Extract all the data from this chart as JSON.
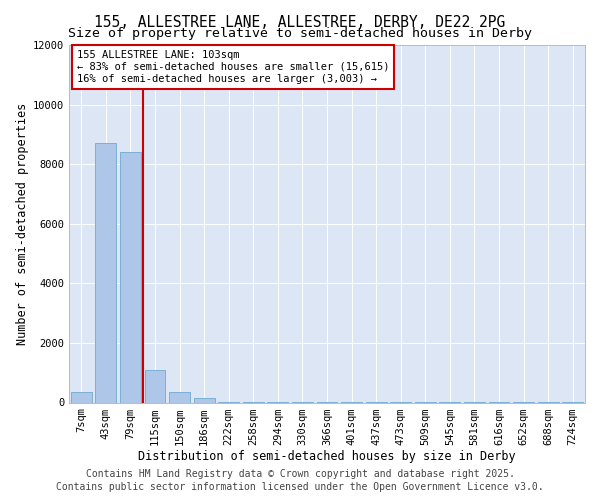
{
  "title_line1": "155, ALLESTREE LANE, ALLESTREE, DERBY, DE22 2PG",
  "title_line2": "Size of property relative to semi-detached houses in Derby",
  "xlabel": "Distribution of semi-detached houses by size in Derby",
  "ylabel": "Number of semi-detached properties",
  "categories": [
    "7sqm",
    "43sqm",
    "79sqm",
    "115sqm",
    "150sqm",
    "186sqm",
    "222sqm",
    "258sqm",
    "294sqm",
    "330sqm",
    "366sqm",
    "401sqm",
    "437sqm",
    "473sqm",
    "509sqm",
    "545sqm",
    "581sqm",
    "616sqm",
    "652sqm",
    "688sqm",
    "724sqm"
  ],
  "values": [
    350,
    8700,
    8400,
    1100,
    350,
    150,
    30,
    8,
    5,
    4,
    3,
    2,
    2,
    2,
    2,
    2,
    2,
    2,
    2,
    2,
    2
  ],
  "bar_color": "#aec6e8",
  "bar_edgecolor": "#7aafd4",
  "vline_color": "#cc0000",
  "vline_index": 3,
  "annotation_text": "155 ALLESTREE LANE: 103sqm\n← 83% of semi-detached houses are smaller (15,615)\n16% of semi-detached houses are larger (3,003) →",
  "annotation_box_edgecolor": "#cc0000",
  "ylim": [
    0,
    12000
  ],
  "yticks": [
    0,
    2000,
    4000,
    6000,
    8000,
    10000,
    12000
  ],
  "background_color": "#dce6f5",
  "footer_line1": "Contains HM Land Registry data © Crown copyright and database right 2025.",
  "footer_line2": "Contains public sector information licensed under the Open Government Licence v3.0.",
  "title_fontsize": 10.5,
  "subtitle_fontsize": 9.5,
  "axis_label_fontsize": 8.5,
  "tick_fontsize": 7.5,
  "footer_fontsize": 7,
  "annot_fontsize": 7.5
}
